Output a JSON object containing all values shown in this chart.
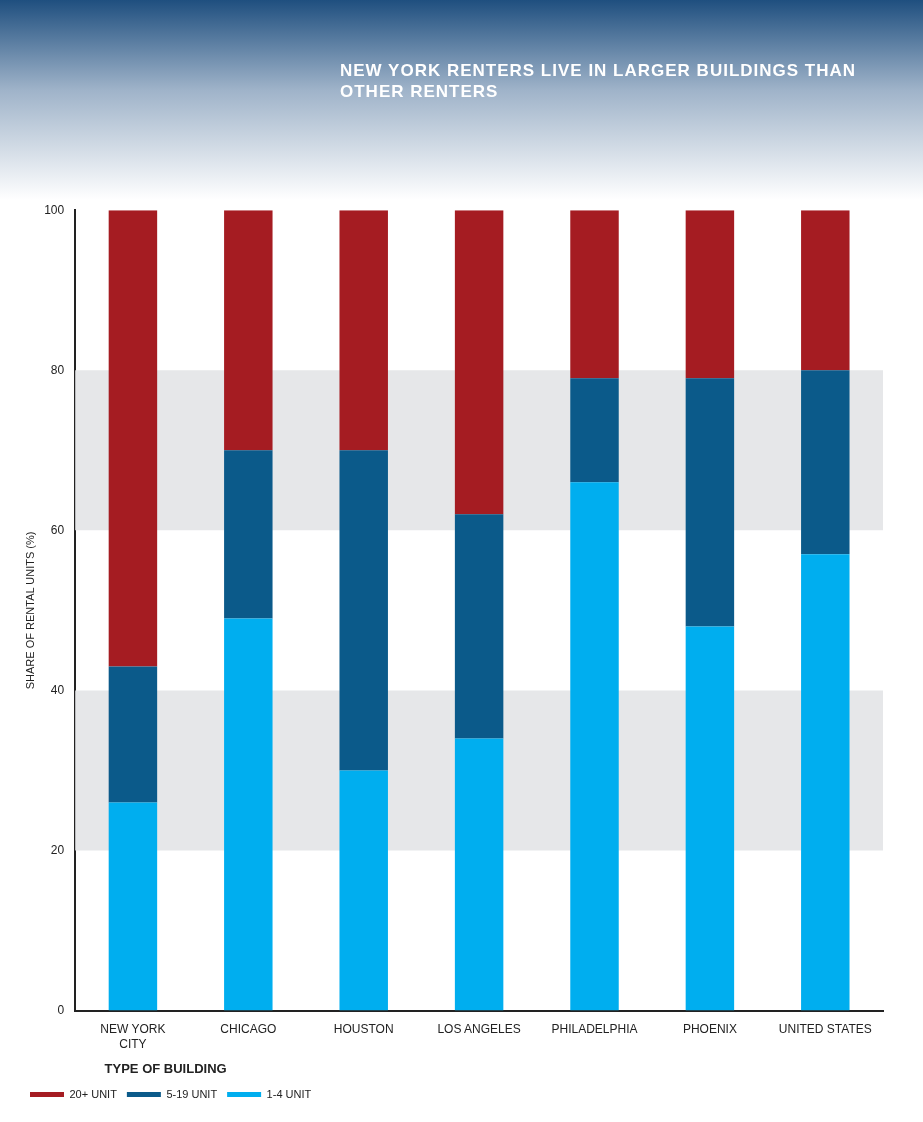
{
  "chart_data": {
    "type": "bar",
    "stacked": true,
    "title": "NEW YORK RENTERS LIVE IN LARGER BUILDINGS THAN OTHER RENTERS",
    "ylabel": "SHARE OF RENTAL UNITS (%)",
    "legend_title": "TYPE OF BUILDING",
    "categories": [
      "NEW YORK CITY",
      "CHICAGO",
      "HOUSTON",
      "LOS ANGELES",
      "PHILADELPHIA",
      "PHOENIX",
      "UNITED STATES"
    ],
    "series": [
      {
        "name": "1-4 UNIT",
        "color": "#00aeef",
        "values": [
          26,
          49,
          30,
          34,
          66,
          48,
          57
        ]
      },
      {
        "name": "5-19 UNIT",
        "color": "#0b5a8a",
        "values": [
          17,
          21,
          40,
          28,
          13,
          31,
          23
        ]
      },
      {
        "name": "20+ UNIT",
        "color": "#a51c22",
        "values": [
          57,
          30,
          30,
          38,
          21,
          21,
          20
        ]
      }
    ],
    "ylim": [
      0,
      100
    ],
    "yticks": [
      0,
      20,
      40,
      60,
      80,
      100
    ],
    "grid": false,
    "bands": [
      {
        "axis": "y",
        "from": 20,
        "to": 40,
        "color": "#e6e7e9"
      },
      {
        "axis": "y",
        "from": 60,
        "to": 80,
        "color": "#e6e7e9"
      }
    ],
    "legend": "bottom"
  }
}
